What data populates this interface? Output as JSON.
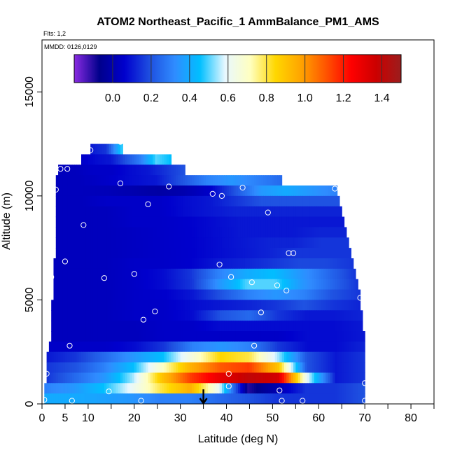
{
  "chart_data": {
    "type": "heatmap",
    "title": "ATOM2 Northeast_Pacific_1 AmmBalance_PM1_AMS",
    "flights_note": "Flts: 1,2",
    "date_note": "MMDD: 0126,0129",
    "xlabel": "Latitude (deg N)",
    "ylabel": "Altitude (m)",
    "xlim": [
      0,
      85
    ],
    "ylim": [
      0,
      17500
    ],
    "x_ticks": [
      0,
      5,
      10,
      20,
      30,
      40,
      50,
      60,
      70,
      80
    ],
    "x_minor_ticks": [
      15,
      25,
      35,
      45,
      55,
      65,
      75,
      85
    ],
    "y_ticks": [
      0,
      5000,
      10000,
      15000
    ],
    "colorbar": {
      "range": [
        -0.2,
        1.5
      ],
      "tick_values": [
        0.0,
        0.2,
        0.4,
        0.6,
        0.8,
        1.0,
        1.2,
        1.4
      ],
      "tick_labels": [
        "0.0",
        "0.2",
        "0.4",
        "0.6",
        "0.8",
        "1.0",
        "1.2",
        "1.4"
      ],
      "stops": [
        "#8a2be2",
        "#00008b",
        "#0000cd",
        "#1e4fe0",
        "#2f8cff",
        "#00bfff",
        "#e8f8ff",
        "#ffffc0",
        "#ffd700",
        "#ffa500",
        "#ff5500",
        "#ff0000",
        "#cc0000",
        "#9b1d1d"
      ]
    },
    "arrow": {
      "latitude": 35,
      "altitude_top": 700,
      "altitude_bottom": 0
    },
    "curtain_bands": [
      {
        "alt_bottom": 12000,
        "alt_top": 12500,
        "lat_start": 10.5,
        "lat_end": 17.5,
        "values": [
          0.1,
          0.15,
          0.5
        ]
      },
      {
        "alt_bottom": 11500,
        "alt_top": 12000,
        "lat_start": 8.5,
        "lat_end": 28.0,
        "values": [
          0.05,
          0.08,
          0.1,
          0.2,
          0.3,
          0.5,
          0.45
        ]
      },
      {
        "alt_bottom": 11000,
        "alt_top": 11500,
        "lat_start": 3.5,
        "lat_end": 31.0,
        "values": [
          0.03,
          0.03,
          0.05,
          0.05,
          0.08,
          0.1,
          0.15,
          0.2
        ]
      },
      {
        "alt_bottom": 10500,
        "alt_top": 11000,
        "lat_start": 3.0,
        "lat_end": 52.0,
        "values": [
          0.03,
          0.03,
          0.05,
          0.08,
          0.1,
          0.2,
          0.3,
          0.35,
          0.3,
          0.25
        ]
      },
      {
        "alt_bottom": 10000,
        "alt_top": 10500,
        "lat_start": 3.0,
        "lat_end": 64.0,
        "values": [
          0.03,
          0.03,
          0.02,
          0.0,
          -0.02,
          0.0,
          0.05,
          0.2,
          0.35,
          0.4,
          0.35,
          0.3
        ]
      },
      {
        "alt_bottom": 9500,
        "alt_top": 10000,
        "lat_start": 3.0,
        "lat_end": 64.5,
        "values": [
          0.03,
          0.03,
          0.05,
          0.05,
          0.05,
          0.08,
          0.1,
          0.15,
          0.2,
          0.2,
          0.2,
          0.2
        ]
      },
      {
        "alt_bottom": 9000,
        "alt_top": 9500,
        "lat_start": 3.0,
        "lat_end": 65.0,
        "values": [
          0.03,
          0.03,
          0.03,
          0.05,
          0.05,
          0.08,
          0.1,
          0.12,
          0.12,
          0.12,
          0.12,
          0.12
        ]
      },
      {
        "alt_bottom": 8500,
        "alt_top": 9000,
        "lat_start": 3.0,
        "lat_end": 65.5,
        "values": [
          0.03,
          0.03,
          0.03,
          0.05,
          0.05,
          0.06,
          0.08,
          0.1,
          0.1,
          0.1,
          0.1,
          0.1
        ]
      },
      {
        "alt_bottom": 8000,
        "alt_top": 8500,
        "lat_start": 3.0,
        "lat_end": 66.0,
        "values": [
          0.03,
          0.03,
          0.03,
          0.04,
          0.05,
          0.06,
          0.08,
          0.1,
          0.1,
          0.1,
          0.12,
          0.12
        ]
      },
      {
        "alt_bottom": 7500,
        "alt_top": 8000,
        "lat_start": 3.0,
        "lat_end": 66.5,
        "values": [
          0.03,
          0.03,
          0.03,
          0.04,
          0.05,
          0.06,
          0.08,
          0.1,
          0.12,
          0.12,
          0.15,
          0.15
        ]
      },
      {
        "alt_bottom": 7000,
        "alt_top": 7500,
        "lat_start": 3.0,
        "lat_end": 67.0,
        "values": [
          0.03,
          0.03,
          0.03,
          0.04,
          0.05,
          0.06,
          0.08,
          0.1,
          0.12,
          0.15,
          0.15,
          0.15
        ]
      },
      {
        "alt_bottom": 6500,
        "alt_top": 7000,
        "lat_start": 2.5,
        "lat_end": 67.5,
        "values": [
          0.03,
          0.03,
          0.03,
          0.05,
          0.05,
          0.06,
          0.1,
          0.12,
          0.15,
          0.18,
          0.18,
          0.15
        ]
      },
      {
        "alt_bottom": 6000,
        "alt_top": 6500,
        "lat_start": 2.5,
        "lat_end": 68.0,
        "values": [
          0.03,
          0.03,
          0.03,
          0.05,
          0.08,
          0.15,
          0.3,
          0.4,
          0.45,
          0.35,
          0.25,
          0.15
        ]
      },
      {
        "alt_bottom": 5500,
        "alt_top": 6000,
        "lat_start": 2.5,
        "lat_end": 68.5,
        "values": [
          0.03,
          0.03,
          0.03,
          0.05,
          0.08,
          0.15,
          0.35,
          0.5,
          0.5,
          0.35,
          0.25,
          0.15
        ]
      },
      {
        "alt_bottom": 5000,
        "alt_top": 5500,
        "lat_start": 2.5,
        "lat_end": 69.0,
        "values": [
          0.03,
          0.03,
          0.03,
          0.05,
          0.06,
          0.1,
          0.2,
          0.3,
          0.35,
          0.3,
          0.2,
          0.15
        ]
      },
      {
        "alt_bottom": 4500,
        "alt_top": 5000,
        "lat_start": 2.0,
        "lat_end": 69.0,
        "values": [
          0.03,
          0.03,
          0.03,
          0.05,
          0.05,
          0.08,
          0.1,
          0.12,
          0.15,
          0.2,
          0.15,
          0.12
        ]
      },
      {
        "alt_bottom": 4000,
        "alt_top": 4500,
        "lat_start": 2.0,
        "lat_end": 69.5,
        "values": [
          0.03,
          0.03,
          0.03,
          0.05,
          0.05,
          0.08,
          0.2,
          0.25,
          0.15,
          0.1,
          0.1,
          0.12
        ]
      },
      {
        "alt_bottom": 3500,
        "alt_top": 4000,
        "lat_start": 2.0,
        "lat_end": 69.5,
        "values": [
          0.03,
          0.03,
          0.03,
          0.03,
          0.05,
          0.05,
          0.08,
          0.08,
          0.08,
          0.08,
          0.08,
          0.1
        ]
      },
      {
        "alt_bottom": 3000,
        "alt_top": 3500,
        "lat_start": 2.0,
        "lat_end": 70.0,
        "values": [
          0.03,
          0.03,
          0.03,
          0.03,
          0.05,
          0.05,
          0.05,
          0.05,
          0.05,
          0.08,
          0.08,
          0.1
        ]
      },
      {
        "alt_bottom": 2500,
        "alt_top": 3000,
        "lat_start": 1.5,
        "lat_end": 70.0,
        "values": [
          0.05,
          0.05,
          0.05,
          0.08,
          0.15,
          0.3,
          0.35,
          0.3,
          0.15,
          0.08,
          0.08,
          0.12
        ]
      },
      {
        "alt_bottom": 2000,
        "alt_top": 2500,
        "lat_start": 1.0,
        "lat_end": 70.0,
        "values": [
          0.1,
          0.15,
          0.25,
          0.35,
          0.45,
          0.65,
          0.85,
          0.8,
          0.55,
          0.2,
          0.1,
          0.15
        ]
      },
      {
        "alt_bottom": 1500,
        "alt_top": 2000,
        "lat_start": 1.0,
        "lat_end": 70.0,
        "values": [
          0.15,
          0.2,
          0.3,
          0.45,
          0.7,
          0.95,
          1.1,
          1.15,
          0.9,
          0.2,
          0.1,
          0.15
        ]
      },
      {
        "alt_bottom": 1000,
        "alt_top": 1500,
        "lat_start": 1.0,
        "lat_end": 70.0,
        "values": [
          0.15,
          0.25,
          0.35,
          0.55,
          0.9,
          1.15,
          1.3,
          1.4,
          1.35,
          0.6,
          0.1,
          0.15
        ]
      },
      {
        "alt_bottom": 500,
        "alt_top": 1000,
        "lat_start": 0.5,
        "lat_end": 70.0,
        "values": [
          0.3,
          0.35,
          0.45,
          0.6,
          0.8,
          0.95,
          0.6,
          -0.1,
          0.0,
          0.15,
          0.15,
          0.2
        ]
      },
      {
        "alt_bottom": 0,
        "alt_top": 500,
        "lat_start": 0.5,
        "lat_end": 70.0,
        "values": [
          0.4,
          0.4,
          0.38,
          0.35,
          0.3,
          0.3,
          0.25,
          0.2,
          0.15,
          0.15,
          0.15,
          0.2
        ]
      }
    ],
    "observations": [
      {
        "lat": 1.5,
        "alt": 12800
      },
      {
        "lat": 10.5,
        "alt": 12200
      },
      {
        "lat": 17.0,
        "alt": 12600
      },
      {
        "lat": 4.0,
        "alt": 11300
      },
      {
        "lat": 5.5,
        "alt": 11300
      },
      {
        "lat": 3.0,
        "alt": 10300
      },
      {
        "lat": 17.0,
        "alt": 10600
      },
      {
        "lat": 27.5,
        "alt": 10450
      },
      {
        "lat": 23.0,
        "alt": 9600
      },
      {
        "lat": 37.0,
        "alt": 10100
      },
      {
        "lat": 39.0,
        "alt": 10000
      },
      {
        "lat": 43.5,
        "alt": 10400
      },
      {
        "lat": 63.5,
        "alt": 10350
      },
      {
        "lat": 49.0,
        "alt": 9200
      },
      {
        "lat": 9.0,
        "alt": 8600
      },
      {
        "lat": 53.5,
        "alt": 7250
      },
      {
        "lat": 54.5,
        "alt": 7250
      },
      {
        "lat": 5.0,
        "alt": 6850
      },
      {
        "lat": 38.5,
        "alt": 6700
      },
      {
        "lat": 2.0,
        "alt": 6100
      },
      {
        "lat": 13.5,
        "alt": 6050
      },
      {
        "lat": 20.0,
        "alt": 6250
      },
      {
        "lat": 41.0,
        "alt": 6100
      },
      {
        "lat": 45.5,
        "alt": 5850
      },
      {
        "lat": 51.0,
        "alt": 5700
      },
      {
        "lat": 53.0,
        "alt": 5450
      },
      {
        "lat": 69.0,
        "alt": 5100
      },
      {
        "lat": 24.5,
        "alt": 4450
      },
      {
        "lat": 22.0,
        "alt": 4050
      },
      {
        "lat": 47.5,
        "alt": 4400
      },
      {
        "lat": 6.0,
        "alt": 2800
      },
      {
        "lat": 46.0,
        "alt": 2800
      },
      {
        "lat": 1.0,
        "alt": 1450
      },
      {
        "lat": 40.5,
        "alt": 1450
      },
      {
        "lat": 40.5,
        "alt": 850
      },
      {
        "lat": 14.5,
        "alt": 600
      },
      {
        "lat": 51.5,
        "alt": 650
      },
      {
        "lat": 70.0,
        "alt": 1000
      },
      {
        "lat": 0.5,
        "alt": 200
      },
      {
        "lat": 6.5,
        "alt": 150
      },
      {
        "lat": 21.5,
        "alt": 150
      },
      {
        "lat": 52.0,
        "alt": 150
      },
      {
        "lat": 56.5,
        "alt": 150
      },
      {
        "lat": 70.0,
        "alt": 150
      }
    ]
  }
}
